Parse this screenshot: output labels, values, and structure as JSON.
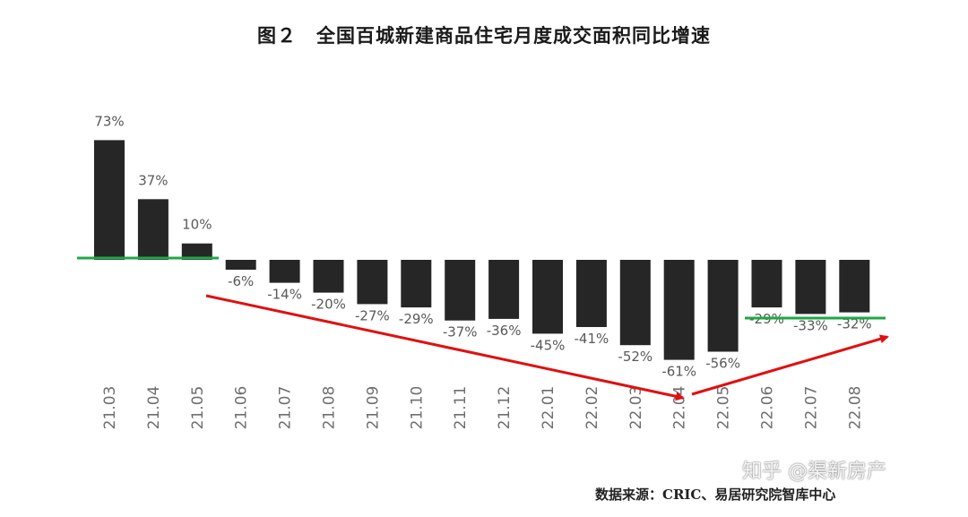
{
  "header": {
    "title": "图２　全国百城新建商品住宅月度成交面积同比增速"
  },
  "chart_data": {
    "type": "bar",
    "categories": [
      "21.03",
      "21.04",
      "21.05",
      "21.06",
      "21.07",
      "21.08",
      "21.09",
      "21.10",
      "21.11",
      "21.12",
      "22.01",
      "22.02",
      "22.03",
      "22.04",
      "22.05",
      "22.06",
      "22.07",
      "22.08"
    ],
    "values": [
      73,
      37,
      10,
      -6,
      -14,
      -20,
      -27,
      -29,
      -37,
      -36,
      -45,
      -41,
      -52,
      -61,
      -56,
      -29,
      -33,
      -32
    ],
    "data_labels": [
      "73%",
      "37%",
      "10%",
      "-6%",
      "-14%",
      "-20%",
      "-27%",
      "-29%",
      "-37%",
      "-36%",
      "-45%",
      "-41%",
      "-52%",
      "-61%",
      "-56%",
      "-29%",
      "-33%",
      "-32%"
    ],
    "title": "图２　全国百城新建商品住宅月度成交面积同比增速",
    "xlabel": "",
    "ylabel": "",
    "grid": false,
    "colors": {
      "bar": "#262626",
      "highlight_line": "#22a745",
      "trend_arrow": "#e01010",
      "label": "#595959"
    }
  },
  "footer": {
    "source": "数据来源：CRIC、易居研究院智库中心",
    "watermark": "知乎 @渠新房产"
  }
}
